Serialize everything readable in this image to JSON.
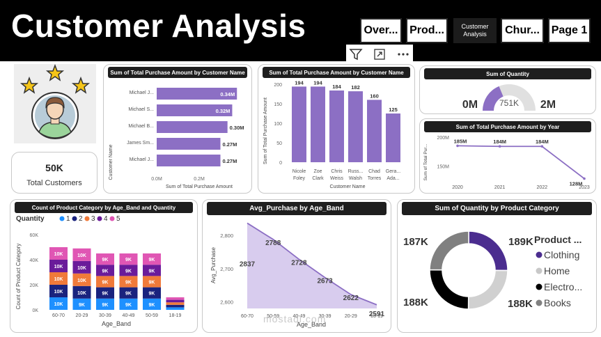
{
  "header": {
    "title": "Customer Analysis",
    "nav": [
      {
        "label": "Over..."
      },
      {
        "label": "Prod..."
      },
      {
        "label_line1": "Customer",
        "label_line2": "Analysis"
      },
      {
        "label": "Chur..."
      },
      {
        "label": "Page 1"
      }
    ]
  },
  "toolbar": {
    "filter_icon": "filter-icon",
    "focus_icon": "expand-icon",
    "more_icon": "more-options-icon"
  },
  "kpi": {
    "value": "50K",
    "label": "Total Customers"
  },
  "colors": {
    "purple": "#8c6fc4",
    "dark_purple": "#4b2d8f",
    "grey": "#808080",
    "light_grey": "#d0d0d0",
    "black": "#000000"
  },
  "hbar": {
    "title": "Sum of Total Purchase Amount by Customer Name",
    "ylabel": "Customer Name",
    "xlabel": "Sum of Total Purchase Amount",
    "ticks": [
      "0.0M",
      "0.2M"
    ],
    "chart_data": {
      "type": "bar",
      "categories": [
        "Michael J...",
        "Michael S...",
        "Michael B...",
        "James Sm...",
        "Michael J..."
      ],
      "values": [
        0.34,
        0.32,
        0.3,
        0.27,
        0.27
      ],
      "labels": [
        "0.34M",
        "0.32M",
        "0.30M",
        "0.27M",
        "0.27M"
      ],
      "xlim": [
        0,
        0.36
      ]
    }
  },
  "vbar": {
    "title": "Sum of Total Purchase Amount by Customer Name",
    "ylabel": "Sum of Total Purchase Amount",
    "xlabel": "Customer Name",
    "yticks": [
      "0",
      "50",
      "100",
      "150",
      "200"
    ],
    "chart_data": {
      "type": "bar",
      "categories_line1": [
        "Nicole",
        "Zoe",
        "Chris",
        "Russ...",
        "Chad",
        "Gera..."
      ],
      "categories_line2": [
        "Foley",
        "Clark",
        "Weiss",
        "Walsh",
        "Torres",
        "Ada..."
      ],
      "values": [
        194,
        194,
        184,
        182,
        160,
        125
      ],
      "labels": [
        "194",
        "194",
        "184",
        "182",
        "160",
        "125"
      ],
      "ylim": [
        0,
        200
      ]
    }
  },
  "gauge": {
    "title": "Sum of Quantity",
    "min_label": "0M",
    "max_label": "2M",
    "value_label": "751K",
    "chart_data": {
      "type": "gauge",
      "value": 751,
      "min": 0,
      "max": 2000
    }
  },
  "line_year": {
    "title": "Sum of Total Purchase Amount by Year",
    "ylabel": "Sum of Total Pur...",
    "yticks": [
      "150M",
      "200M"
    ],
    "chart_data": {
      "type": "line",
      "x": [
        "2020",
        "2021",
        "2022",
        "2023"
      ],
      "values": [
        185,
        184,
        184,
        128
      ],
      "labels": [
        "185M",
        "184M",
        "184M",
        "128M"
      ],
      "ylim": [
        125,
        200
      ]
    }
  },
  "stacked": {
    "title": "Count of Product Category by Age_Band and Quantity",
    "legend_title": "Quantity",
    "ylabel": "Count of Product Category",
    "xlabel": "Age_Band",
    "yticks": [
      "0K",
      "20K",
      "40K",
      "60K"
    ],
    "chart_data": {
      "type": "bar",
      "stacked": true,
      "categories": [
        "60-70",
        "20-29",
        "30-39",
        "40-49",
        "50-59",
        "18-19"
      ],
      "series": [
        {
          "name": "1",
          "color": "#1e90ff",
          "values": [
            10,
            9,
            9,
            9,
            9,
            2
          ],
          "labels": [
            "10K",
            "9K",
            "9K",
            "9K",
            "9K",
            ""
          ]
        },
        {
          "name": "2",
          "color": "#1a237e",
          "values": [
            10,
            10,
            9,
            9,
            9,
            2
          ],
          "labels": [
            "10K",
            "10K",
            "9K",
            "9K",
            "9K",
            ""
          ]
        },
        {
          "name": "3",
          "color": "#f07a3a",
          "values": [
            10,
            10,
            9,
            9,
            9,
            2
          ],
          "labels": [
            "10K",
            "10K",
            "9K",
            "9K",
            "9K",
            ""
          ]
        },
        {
          "name": "4",
          "color": "#6a1b9a",
          "values": [
            10,
            10,
            9,
            9,
            9,
            2
          ],
          "labels": [
            "10K",
            "10K",
            "9K",
            "9K",
            "9K",
            ""
          ]
        },
        {
          "name": "5",
          "color": "#e056b4",
          "values": [
            10,
            10,
            9,
            9,
            9,
            2
          ],
          "labels": [
            "10K",
            "10K",
            "9K",
            "9K",
            "9K",
            ""
          ]
        }
      ],
      "ylim": [
        0,
        60
      ]
    }
  },
  "area": {
    "title": "Avg_Purchase by Age_Band",
    "ylabel": "Avg_Purchase",
    "xlabel": "Age_Band",
    "yticks": [
      "2,600",
      "2,700",
      "2,800"
    ],
    "chart_data": {
      "type": "area",
      "x": [
        "60-70",
        "50-59",
        "40-49",
        "30-39",
        "20-29",
        "18-19"
      ],
      "values": [
        2837,
        2788,
        2728,
        2673,
        2622,
        2591
      ],
      "labels": [
        "2837",
        "2788",
        "2728",
        "2673",
        "2622",
        "2591"
      ],
      "ylim": [
        2580,
        2840
      ]
    }
  },
  "donut": {
    "title": "Sum of Quantity by Product Category",
    "legend_title": "Product ...",
    "chart_data": {
      "type": "pie",
      "categories": [
        "Clothing",
        "Home",
        "Electro...",
        "Books"
      ],
      "values": [
        189,
        188,
        188,
        187
      ],
      "labels": [
        "189K",
        "188K",
        "188K",
        "187K"
      ],
      "colors": [
        "#4b2d8f",
        "#d0d0d0",
        "#000000",
        "#808080"
      ]
    }
  },
  "watermark": "mostaql.com"
}
